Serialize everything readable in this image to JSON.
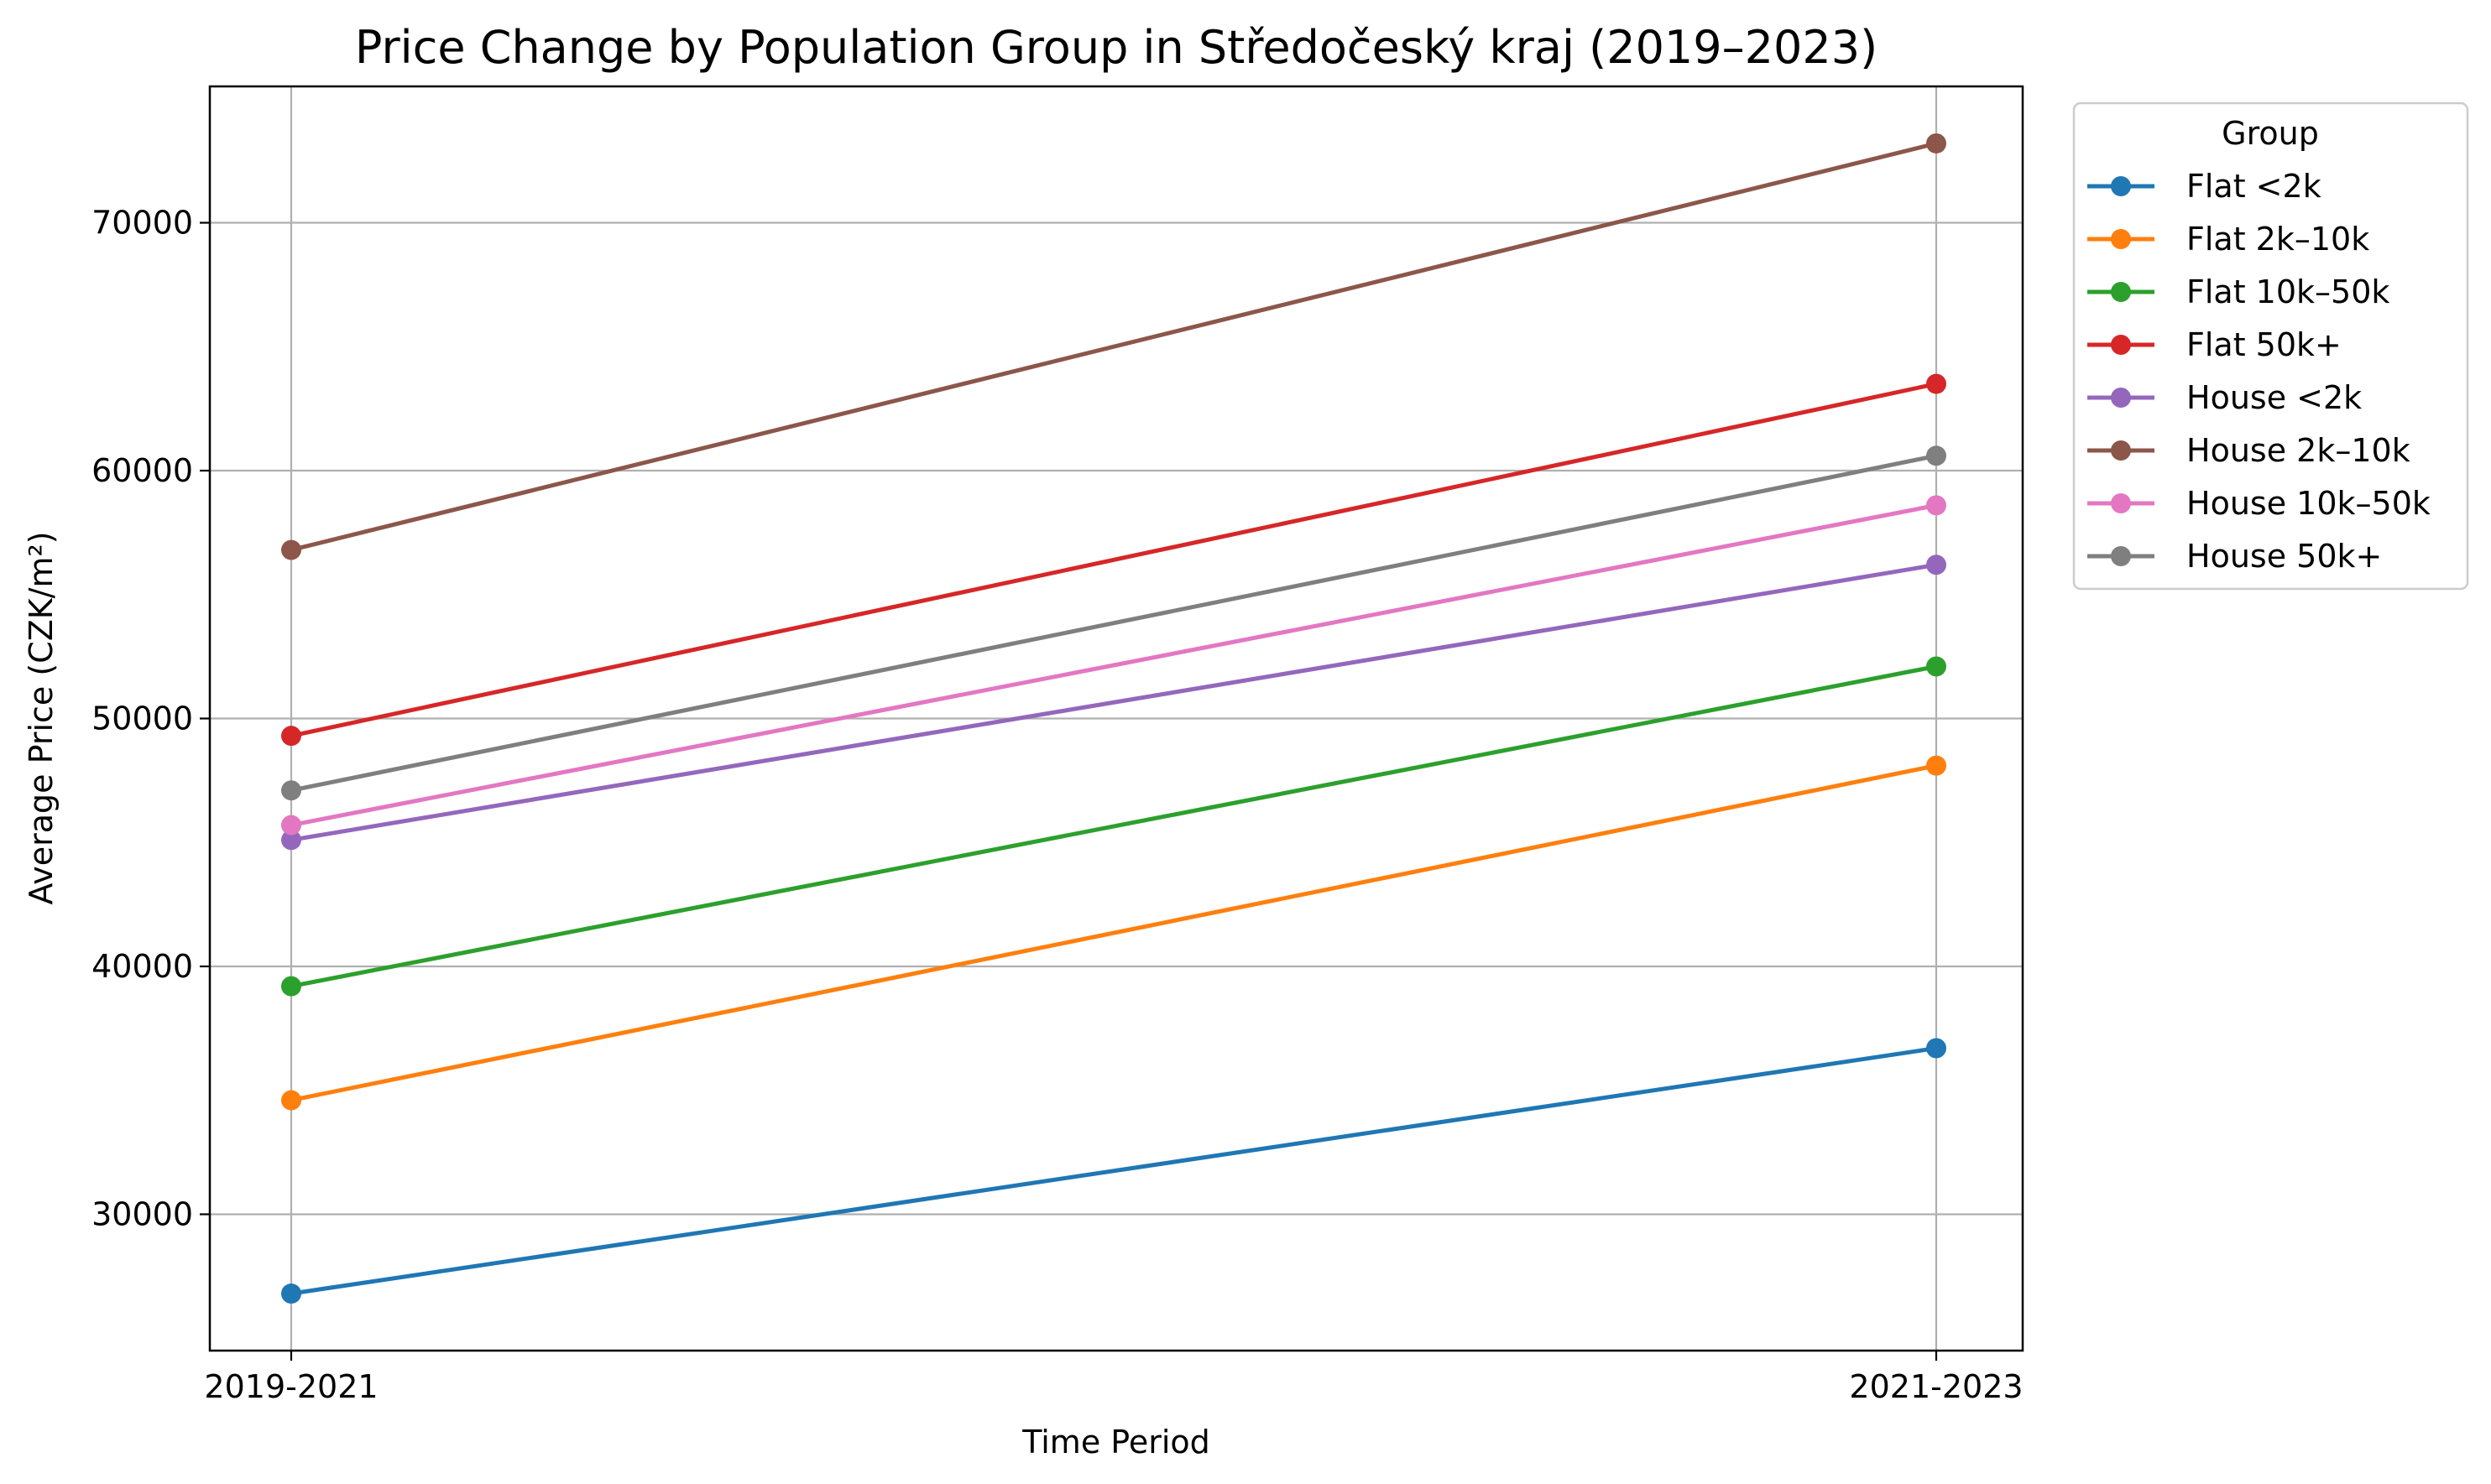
{
  "chart_data": {
    "type": "line",
    "title": "Price Change by Population Group in Středočeský kraj (2019–2023)",
    "xlabel": "Time Period",
    "ylabel": "Average Price (CZK/m²)",
    "categories": [
      "2019-2021",
      "2021-2023"
    ],
    "y_ticks": [
      30000,
      40000,
      50000,
      60000,
      70000
    ],
    "y_tick_labels": [
      "30000",
      "40000",
      "50000",
      "60000",
      "70000"
    ],
    "ylim": [
      24500,
      75500
    ],
    "grid": true,
    "legend": {
      "title": "Group",
      "placement": "outside-top-right"
    },
    "series": [
      {
        "name": "Flat <2k",
        "color": "#1f77b4",
        "values": [
          26800,
          36700
        ]
      },
      {
        "name": "Flat 2k–10k",
        "color": "#ff7f0e",
        "values": [
          34600,
          48100
        ]
      },
      {
        "name": "Flat 10k–50k",
        "color": "#2ca02c",
        "values": [
          39200,
          52100
        ]
      },
      {
        "name": "Flat 50k+",
        "color": "#d62728",
        "values": [
          49300,
          63500
        ]
      },
      {
        "name": "House <2k",
        "color": "#9467bd",
        "values": [
          45100,
          56200
        ]
      },
      {
        "name": "House 2k–10k",
        "color": "#8c564b",
        "values": [
          56800,
          73200
        ]
      },
      {
        "name": "House 10k–50k",
        "color": "#e377c2",
        "values": [
          45700,
          58600
        ]
      },
      {
        "name": "House 50k+",
        "color": "#7f7f7f",
        "values": [
          47100,
          60600
        ]
      }
    ]
  }
}
